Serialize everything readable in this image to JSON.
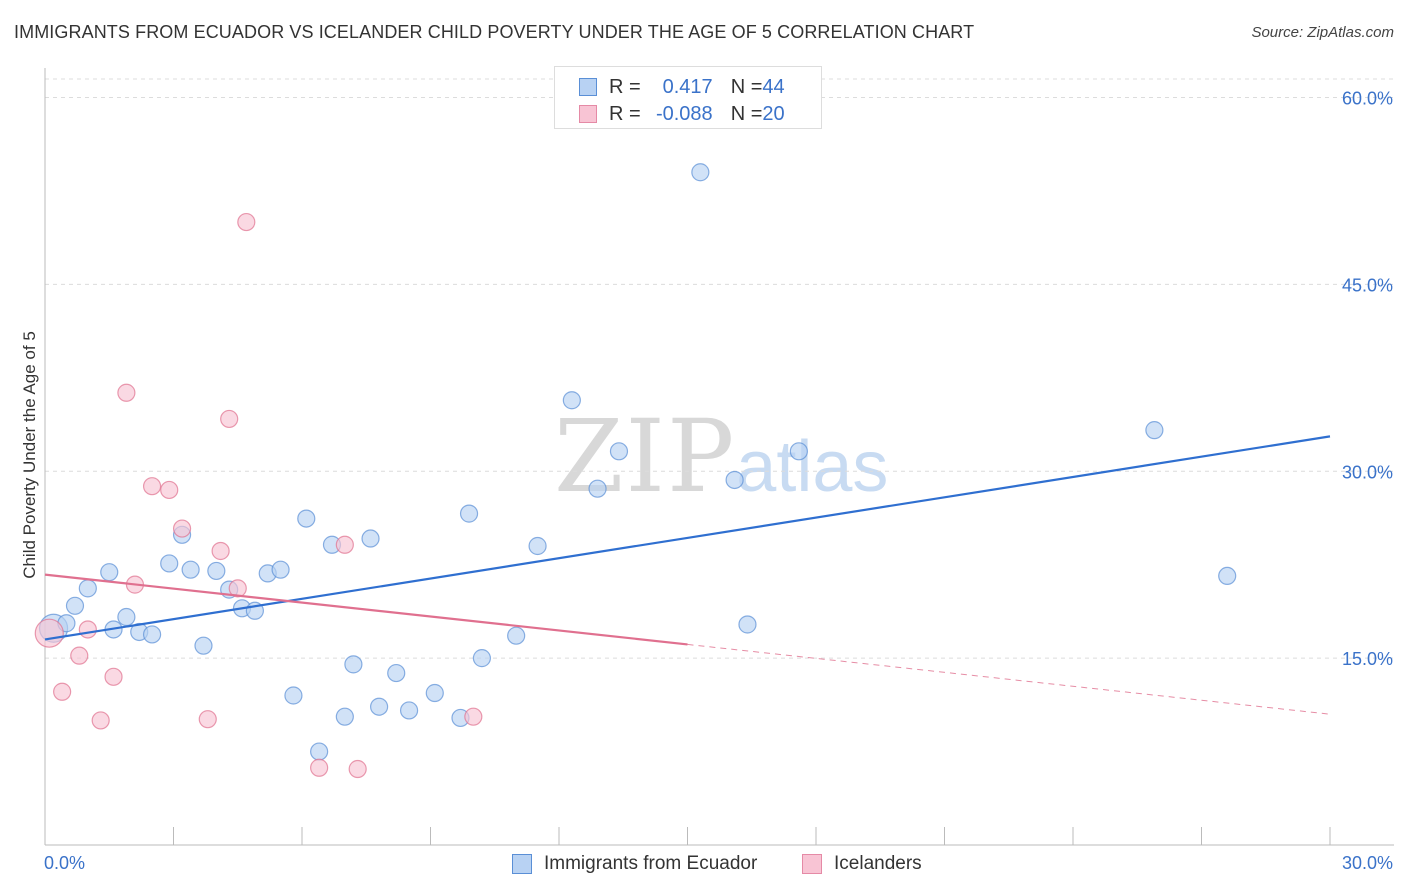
{
  "title": "IMMIGRANTS FROM ECUADOR VS ICELANDER CHILD POVERTY UNDER THE AGE OF 5 CORRELATION CHART",
  "source": "Source: ZipAtlas.com",
  "watermark": {
    "zip": "ZIP",
    "atlas": "atlas"
  },
  "legend_top": {
    "rows": [
      {
        "r_label": "R = ",
        "r_value": "0.417",
        "n_label": "N = ",
        "n_value": "44",
        "color": "#b8d2f3",
        "border": "#5a8fd6"
      },
      {
        "r_label": "R = ",
        "r_value": "-0.088",
        "n_label": "N = ",
        "n_value": "20",
        "color": "#f8c4d4",
        "border": "#e58aa6"
      }
    ]
  },
  "legend_bottom": [
    {
      "label": "Immigrants from Ecuador",
      "color": "#b8d2f3",
      "border": "#5a8fd6"
    },
    {
      "label": "Icelanders",
      "color": "#f8c4d4",
      "border": "#e58aa6"
    }
  ],
  "chart_data": {
    "type": "scatter",
    "title": "IMMIGRANTS FROM ECUADOR VS ICELANDER CHILD POVERTY UNDER THE AGE OF 5 CORRELATION CHART",
    "xlabel": "",
    "ylabel": "Child Poverty Under the Age of 5",
    "xlim": [
      0,
      30
    ],
    "ylim": [
      0,
      60
    ],
    "x_tick_labels": [
      "0.0%",
      "30.0%"
    ],
    "y_ticks": [
      15,
      30,
      45,
      60
    ],
    "y_tick_labels": [
      "15.0%",
      "30.0%",
      "45.0%",
      "60.0%"
    ],
    "grid": true,
    "legend_position": "top-center",
    "series": [
      {
        "name": "Immigrants from Ecuador",
        "color": "#5a8fd6",
        "fill": "#b8d2f3",
        "trend": {
          "x0": 0,
          "y0": 16.5,
          "x1": 30,
          "y1": 32.8,
          "dashed_from": null
        },
        "points": [
          [
            0.2,
            17.4
          ],
          [
            0.5,
            17.8
          ],
          [
            0.7,
            19.2
          ],
          [
            1.0,
            20.6
          ],
          [
            1.5,
            21.9
          ],
          [
            1.6,
            17.3
          ],
          [
            1.9,
            18.3
          ],
          [
            2.2,
            17.1
          ],
          [
            2.5,
            16.9
          ],
          [
            2.9,
            22.6
          ],
          [
            3.2,
            24.9
          ],
          [
            3.4,
            22.1
          ],
          [
            3.7,
            16.0
          ],
          [
            4.0,
            22.0
          ],
          [
            4.3,
            20.5
          ],
          [
            4.6,
            19.0
          ],
          [
            4.9,
            18.8
          ],
          [
            5.2,
            21.8
          ],
          [
            5.5,
            22.1
          ],
          [
            5.8,
            12.0
          ],
          [
            6.1,
            26.2
          ],
          [
            6.4,
            7.5
          ],
          [
            6.7,
            24.1
          ],
          [
            7.0,
            10.3
          ],
          [
            7.2,
            14.5
          ],
          [
            7.6,
            24.6
          ],
          [
            7.8,
            11.1
          ],
          [
            8.2,
            13.8
          ],
          [
            8.5,
            10.8
          ],
          [
            9.1,
            12.2
          ],
          [
            9.7,
            10.2
          ],
          [
            9.9,
            26.6
          ],
          [
            10.2,
            15.0
          ],
          [
            11.0,
            16.8
          ],
          [
            11.5,
            24.0
          ],
          [
            12.3,
            35.7
          ],
          [
            12.9,
            28.6
          ],
          [
            13.4,
            31.6
          ],
          [
            15.3,
            54.0
          ],
          [
            16.1,
            29.3
          ],
          [
            16.4,
            17.7
          ],
          [
            17.6,
            31.6
          ],
          [
            25.9,
            33.3
          ],
          [
            27.6,
            21.6
          ]
        ]
      },
      {
        "name": "Icelanders",
        "color": "#e0708f",
        "fill": "#f8c4d4",
        "trend": {
          "x0": 0,
          "y0": 21.7,
          "x1": 30,
          "y1": 10.5,
          "dashed_from": 15
        },
        "points": [
          [
            0.1,
            17.0
          ],
          [
            0.4,
            12.3
          ],
          [
            0.8,
            15.2
          ],
          [
            1.0,
            17.3
          ],
          [
            1.3,
            10.0
          ],
          [
            1.6,
            13.5
          ],
          [
            1.9,
            36.3
          ],
          [
            2.1,
            20.9
          ],
          [
            2.5,
            28.8
          ],
          [
            2.9,
            28.5
          ],
          [
            3.2,
            25.4
          ],
          [
            3.8,
            10.1
          ],
          [
            4.1,
            23.6
          ],
          [
            4.3,
            34.2
          ],
          [
            4.5,
            20.6
          ],
          [
            4.7,
            50.0
          ],
          [
            6.4,
            6.2
          ],
          [
            7.0,
            24.1
          ],
          [
            7.3,
            6.1
          ],
          [
            10.0,
            10.3
          ]
        ]
      }
    ]
  }
}
